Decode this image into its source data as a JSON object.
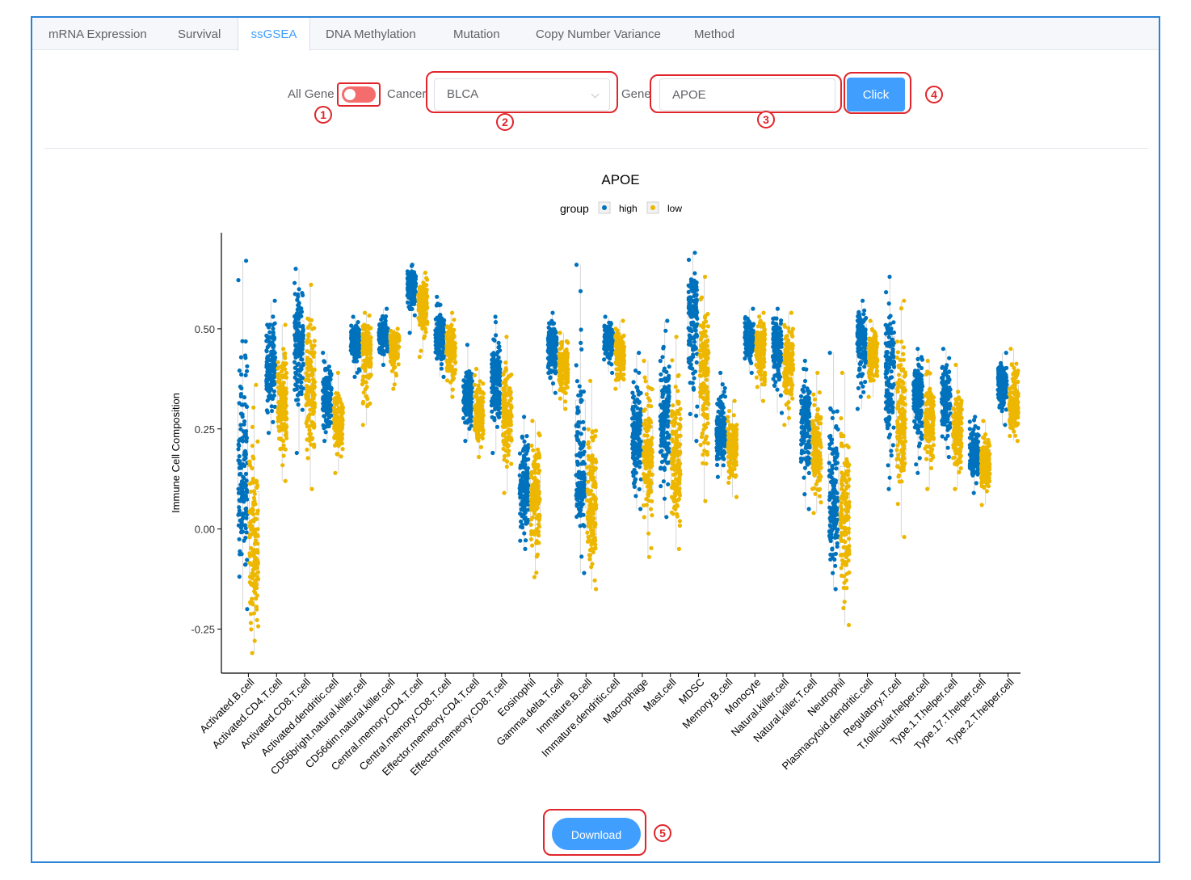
{
  "tabs": [
    {
      "label": "mRNA Expression",
      "active": false
    },
    {
      "label": "Survival",
      "active": false
    },
    {
      "label": "ssGSEA",
      "active": true
    },
    {
      "label": "DNA Methylation",
      "active": false
    },
    {
      "label": "Mutation",
      "active": false
    },
    {
      "label": "Copy Number Variance",
      "active": false
    },
    {
      "label": "Method",
      "active": false
    }
  ],
  "controls": {
    "all_gene_label": "All Gene",
    "all_gene_on": false,
    "cancer_label": "Cancer",
    "cancer_value": "BLCA",
    "gene_label": "Gene",
    "gene_value": "APOE",
    "click_label": "Click"
  },
  "annotations": [
    "1",
    "2",
    "3",
    "4",
    "5"
  ],
  "download_label": "Download",
  "colors": {
    "accent": "#409eff",
    "toggle_off": "#f56c6c",
    "callout": "#e0252b",
    "high": "#0072bd",
    "low": "#edb700",
    "frame": "#2b83d6"
  },
  "chart_data": {
    "type": "scatter",
    "title": "APOE",
    "ylabel": "Immune Cell Composition",
    "xlabel": "",
    "ylim": [
      -0.36,
      0.74
    ],
    "yticks": [
      -0.25,
      0.0,
      0.25,
      0.5
    ],
    "ytick_labels": [
      "-0.25",
      "0.00",
      "0.25",
      "0.50"
    ],
    "legend": {
      "title": "group",
      "position": "top-center",
      "entries": [
        "high",
        "low"
      ]
    },
    "grid": false,
    "categories": [
      "Activated.B.cell",
      "Activated.CD4.T.cell",
      "Activated.CD8.T.cell",
      "Activated.dendritic.cell",
      "CD56bright.natural.killer.cell",
      "CD56dim.natural.killer.cell",
      "Central.memory.CD4.T.cell",
      "Central.memory.CD8.T.cell",
      "Effector.memeory.CD4.T.cell",
      "Effector.memeory.CD8.T.cell",
      "Eosinophil",
      "Gamma.delta.T.cell",
      "Immature.B.cell",
      "Immature.dendritic.cell",
      "Macrophage",
      "Mast.cell",
      "MDSC",
      "Memory.B.cell",
      "Monocyte",
      "Natural.killer.cell",
      "Natural.killer.T.cell",
      "Neutrophil",
      "Plasmacytoid.dendritic.cell",
      "Regulatory.T.cell",
      "T.follicular.helper.cell",
      "Type.1.T.helper.cell",
      "Type.17.T.helper.cell",
      "Type.2.T.helper.cell"
    ],
    "series": [
      {
        "name": "high",
        "median": [
          0.12,
          0.4,
          0.45,
          0.33,
          0.47,
          0.48,
          0.61,
          0.49,
          0.33,
          0.38,
          0.1,
          0.46,
          0.14,
          0.48,
          0.25,
          0.27,
          0.54,
          0.24,
          0.48,
          0.46,
          0.28,
          0.05,
          0.48,
          0.4,
          0.34,
          0.33,
          0.19,
          0.36
        ],
        "min": [
          -0.2,
          0.24,
          0.19,
          0.22,
          0.38,
          0.41,
          0.49,
          0.38,
          0.22,
          0.19,
          -0.05,
          0.34,
          -0.11,
          0.39,
          0.05,
          0.03,
          0.22,
          0.13,
          0.39,
          0.29,
          0.05,
          -0.15,
          0.3,
          0.1,
          0.14,
          0.18,
          0.09,
          0.26
        ],
        "max": [
          0.67,
          0.57,
          0.65,
          0.44,
          0.53,
          0.55,
          0.66,
          0.58,
          0.46,
          0.53,
          0.28,
          0.54,
          0.66,
          0.53,
          0.44,
          0.52,
          0.69,
          0.39,
          0.55,
          0.55,
          0.42,
          0.44,
          0.57,
          0.63,
          0.45,
          0.45,
          0.28,
          0.44
        ]
      },
      {
        "name": "low",
        "median": [
          -0.05,
          0.31,
          0.36,
          0.27,
          0.46,
          0.47,
          0.57,
          0.45,
          0.28,
          0.28,
          0.08,
          0.41,
          0.05,
          0.44,
          0.18,
          0.18,
          0.4,
          0.21,
          0.46,
          0.41,
          0.2,
          0.03,
          0.44,
          0.26,
          0.28,
          0.25,
          0.16,
          0.31
        ],
        "min": [
          -0.31,
          0.12,
          0.1,
          0.14,
          0.26,
          0.35,
          0.43,
          0.33,
          0.18,
          0.09,
          -0.12,
          0.3,
          -0.15,
          0.35,
          -0.07,
          -0.05,
          0.07,
          0.08,
          0.32,
          0.26,
          0.04,
          -0.24,
          0.33,
          -0.02,
          0.1,
          0.1,
          0.06,
          0.22
        ],
        "max": [
          0.36,
          0.51,
          0.61,
          0.39,
          0.54,
          0.5,
          0.64,
          0.54,
          0.4,
          0.48,
          0.27,
          0.49,
          0.37,
          0.52,
          0.42,
          0.48,
          0.63,
          0.32,
          0.54,
          0.54,
          0.39,
          0.39,
          0.52,
          0.57,
          0.42,
          0.41,
          0.27,
          0.45
        ]
      }
    ]
  }
}
